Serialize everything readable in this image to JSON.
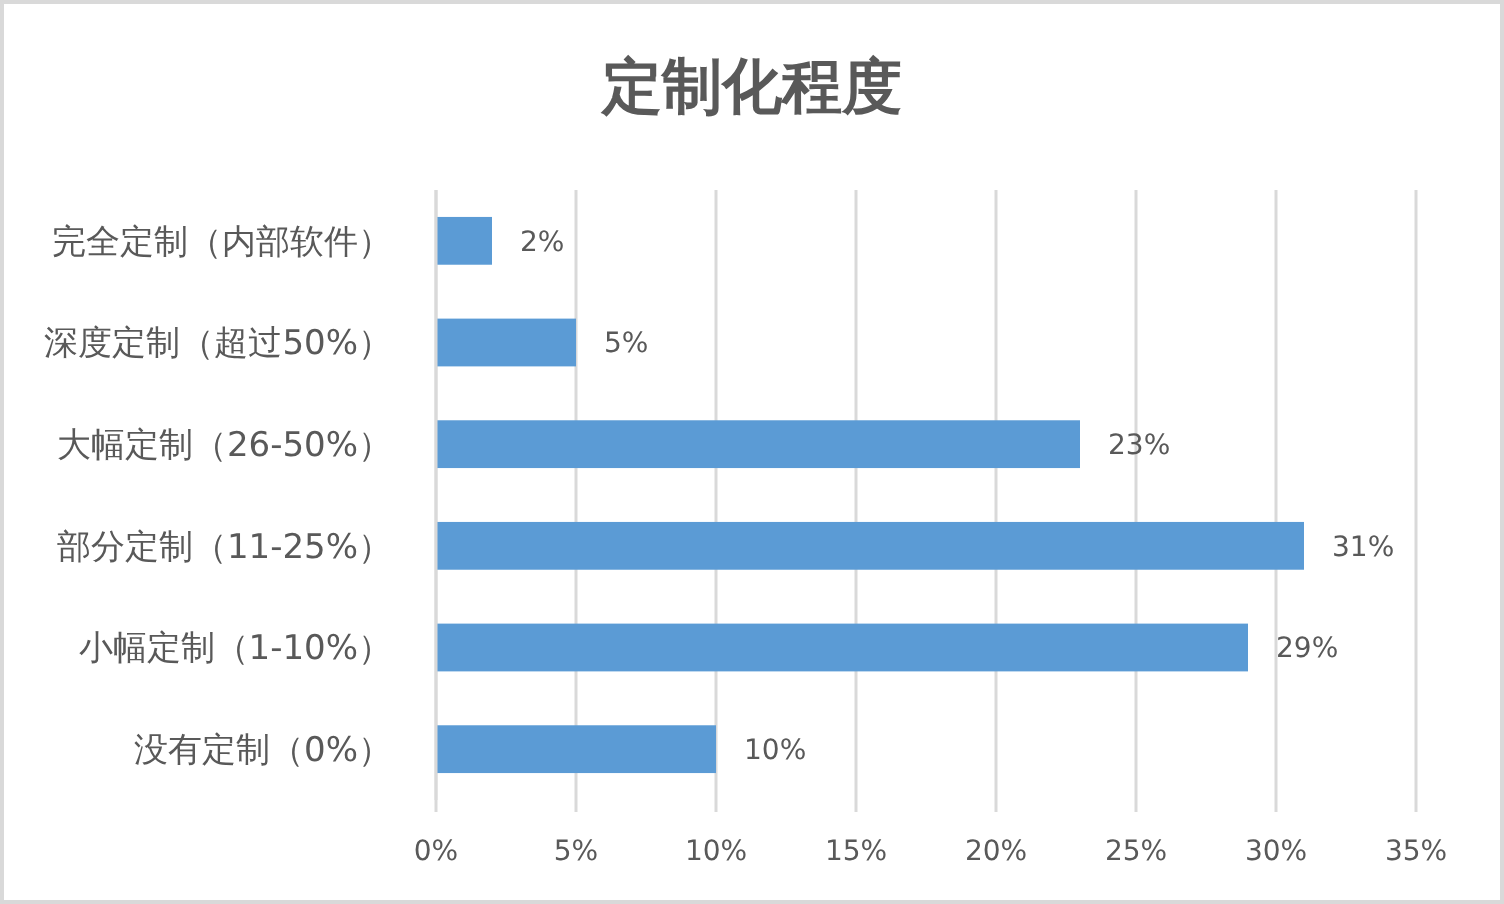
{
  "chart_data": {
    "type": "bar",
    "orientation": "horizontal",
    "title": "定制化程度",
    "categories": [
      "完全定制（内部软件）",
      "深度定制（超过50%）",
      "大幅定制（26-50%）",
      "部分定制（11-25%）",
      "小幅定制（1-10%）",
      "没有定制（0%）"
    ],
    "values": [
      2,
      5,
      23,
      31,
      29,
      10
    ],
    "color": "#5b9bd5",
    "value_labels": [
      "2%",
      "5%",
      "23%",
      "31%",
      "29%",
      "10%"
    ],
    "xlim": [
      0,
      35
    ],
    "xticks": [
      {
        "value": 0,
        "label": "0%"
      },
      {
        "value": 5,
        "label": "5%"
      },
      {
        "value": 10,
        "label": "10%"
      },
      {
        "value": 15,
        "label": "15%"
      },
      {
        "value": 20,
        "label": "20%"
      },
      {
        "value": 25,
        "label": "25%"
      },
      {
        "value": 30,
        "label": "30%"
      },
      {
        "value": 35,
        "label": "35%"
      }
    ],
    "grid": "x"
  }
}
